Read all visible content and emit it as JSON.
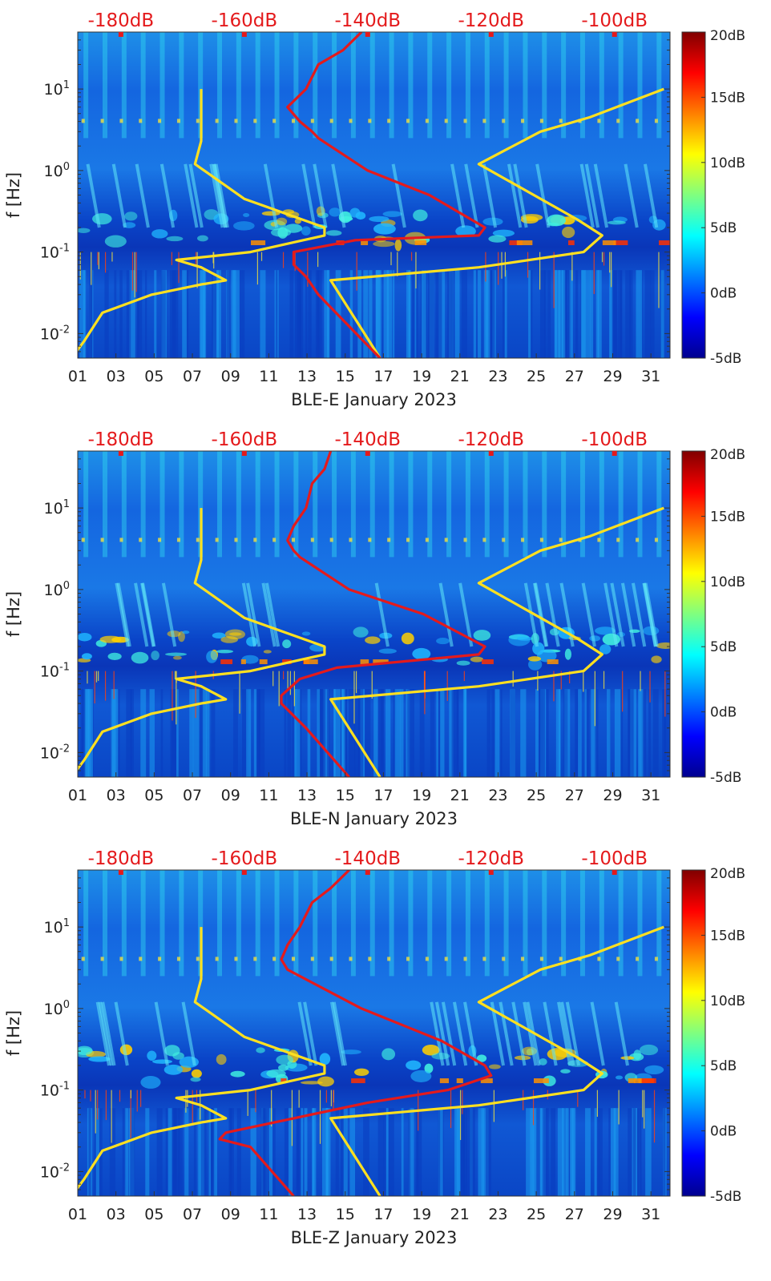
{
  "chart_data": [
    {
      "type": "heatmap",
      "xlabel": "BLE-E January 2023",
      "ylabel": "f [Hz]",
      "x_ticks": [
        "01",
        "03",
        "05",
        "07",
        "09",
        "11",
        "13",
        "15",
        "17",
        "19",
        "21",
        "23",
        "25",
        "27",
        "29",
        "31"
      ],
      "x_range": [
        1,
        32
      ],
      "y_scale": "log",
      "y_range": [
        0.005,
        50
      ],
      "y_ticks": [
        {
          "value": 10,
          "base": "10",
          "exp": "1"
        },
        {
          "value": 1,
          "base": "10",
          "exp": "0"
        },
        {
          "value": 0.1,
          "base": "10",
          "exp": "-1"
        },
        {
          "value": 0.01,
          "base": "10",
          "exp": "-2"
        }
      ],
      "top_axis_ticks": [
        "-180dB",
        "-160dB",
        "-140dB",
        "-120dB",
        "-100dB"
      ],
      "top_axis_range_db": [
        -187,
        -91
      ],
      "colorbar": {
        "ticks": [
          "20dB",
          "15dB",
          "10dB",
          "5dB",
          "0dB",
          "-5dB"
        ],
        "range": [
          -5,
          20
        ],
        "colormap": "jet"
      },
      "series": [
        {
          "color": "#ffe020",
          "axis": "top-dB",
          "points": [
            [
              -188,
              0.005
            ],
            [
              -186,
              0.008
            ],
            [
              -183,
              0.018
            ],
            [
              -175,
              0.03
            ],
            [
              -167,
              0.04
            ],
            [
              -163,
              0.045
            ],
            [
              -167,
              0.065
            ],
            [
              -171,
              0.08
            ],
            [
              -159,
              0.1
            ],
            [
              -147,
              0.16
            ],
            [
              -147,
              0.2
            ],
            [
              -160,
              0.45
            ],
            [
              -168,
              1.2
            ],
            [
              -167,
              2.3
            ],
            [
              -167,
              10
            ]
          ]
        },
        {
          "color": "#ffe020",
          "axis": "top-dB",
          "points": [
            [
              -138,
              0.005
            ],
            [
              -146,
              0.045
            ],
            [
              -122,
              0.065
            ],
            [
              -105,
              0.1
            ],
            [
              -102,
              0.16
            ],
            [
              -106,
              0.25
            ],
            [
              -122,
              1.2
            ],
            [
              -112,
              3
            ],
            [
              -104,
              4.5
            ],
            [
              -92,
              10
            ]
          ]
        },
        {
          "color": "#e41a1c",
          "axis": "top-dB",
          "points": [
            [
              -138,
              0.005
            ],
            [
              -148,
              0.03
            ],
            [
              -150,
              0.05
            ],
            [
              -152,
              0.07
            ],
            [
              -152,
              0.1
            ],
            [
              -142,
              0.14
            ],
            [
              -122,
              0.16
            ],
            [
              -121,
              0.2
            ],
            [
              -130,
              0.5
            ],
            [
              -140,
              1.0
            ],
            [
              -148,
              2.5
            ],
            [
              -149,
              3
            ],
            [
              -151,
              4
            ],
            [
              -153,
              6
            ],
            [
              -150,
              10
            ],
            [
              -148,
              20
            ],
            [
              -144,
              30
            ],
            [
              -141,
              50
            ]
          ]
        }
      ]
    },
    {
      "type": "heatmap",
      "xlabel": "BLE-N January 2023",
      "ylabel": "f [Hz]",
      "x_ticks": [
        "01",
        "03",
        "05",
        "07",
        "09",
        "11",
        "13",
        "15",
        "17",
        "19",
        "21",
        "23",
        "25",
        "27",
        "29",
        "31"
      ],
      "x_range": [
        1,
        32
      ],
      "y_scale": "log",
      "y_range": [
        0.005,
        50
      ],
      "y_ticks": [
        {
          "value": 10,
          "base": "10",
          "exp": "1"
        },
        {
          "value": 1,
          "base": "10",
          "exp": "0"
        },
        {
          "value": 0.1,
          "base": "10",
          "exp": "-1"
        },
        {
          "value": 0.01,
          "base": "10",
          "exp": "-2"
        }
      ],
      "top_axis_ticks": [
        "-180dB",
        "-160dB",
        "-140dB",
        "-120dB",
        "-100dB"
      ],
      "top_axis_range_db": [
        -187,
        -91
      ],
      "colorbar": {
        "ticks": [
          "20dB",
          "15dB",
          "10dB",
          "5dB",
          "0dB",
          "-5dB"
        ],
        "range": [
          -5,
          20
        ],
        "colormap": "jet"
      },
      "series": [
        {
          "color": "#ffe020",
          "axis": "top-dB",
          "points": [
            [
              -188,
              0.005
            ],
            [
              -186,
              0.008
            ],
            [
              -183,
              0.018
            ],
            [
              -175,
              0.03
            ],
            [
              -167,
              0.04
            ],
            [
              -163,
              0.045
            ],
            [
              -167,
              0.065
            ],
            [
              -171,
              0.08
            ],
            [
              -159,
              0.1
            ],
            [
              -147,
              0.16
            ],
            [
              -147,
              0.2
            ],
            [
              -160,
              0.45
            ],
            [
              -168,
              1.2
            ],
            [
              -167,
              2.3
            ],
            [
              -167,
              10
            ]
          ]
        },
        {
          "color": "#ffe020",
          "axis": "top-dB",
          "points": [
            [
              -138,
              0.005
            ],
            [
              -146,
              0.045
            ],
            [
              -122,
              0.065
            ],
            [
              -105,
              0.1
            ],
            [
              -102,
              0.16
            ],
            [
              -106,
              0.25
            ],
            [
              -122,
              1.2
            ],
            [
              -112,
              3
            ],
            [
              -104,
              4.5
            ],
            [
              -92,
              10
            ]
          ]
        },
        {
          "color": "#e41a1c",
          "axis": "top-dB",
          "points": [
            [
              -143,
              0.005
            ],
            [
              -150,
              0.02
            ],
            [
              -154,
              0.04
            ],
            [
              -154,
              0.05
            ],
            [
              -151,
              0.08
            ],
            [
              -145,
              0.11
            ],
            [
              -122,
              0.16
            ],
            [
              -121,
              0.2
            ],
            [
              -131,
              0.5
            ],
            [
              -143,
              1.0
            ],
            [
              -151,
              2.5
            ],
            [
              -152,
              3
            ],
            [
              -153,
              4
            ],
            [
              -152,
              6
            ],
            [
              -150,
              10
            ],
            [
              -149,
              20
            ],
            [
              -147,
              30
            ],
            [
              -146,
              50
            ]
          ]
        }
      ]
    },
    {
      "type": "heatmap",
      "xlabel": "BLE-Z January 2023",
      "ylabel": "f [Hz]",
      "x_ticks": [
        "01",
        "03",
        "05",
        "07",
        "09",
        "11",
        "13",
        "15",
        "17",
        "19",
        "21",
        "23",
        "25",
        "27",
        "29",
        "31"
      ],
      "x_range": [
        1,
        32
      ],
      "y_scale": "log",
      "y_range": [
        0.005,
        50
      ],
      "y_ticks": [
        {
          "value": 10,
          "base": "10",
          "exp": "1"
        },
        {
          "value": 1,
          "base": "10",
          "exp": "0"
        },
        {
          "value": 0.1,
          "base": "10",
          "exp": "-1"
        },
        {
          "value": 0.01,
          "base": "10",
          "exp": "-2"
        }
      ],
      "top_axis_ticks": [
        "-180dB",
        "-160dB",
        "-140dB",
        "-120dB",
        "-100dB"
      ],
      "top_axis_range_db": [
        -187,
        -91
      ],
      "colorbar": {
        "ticks": [
          "20dB",
          "15dB",
          "10dB",
          "5dB",
          "0dB",
          "-5dB"
        ],
        "range": [
          -5,
          20
        ],
        "colormap": "jet"
      },
      "series": [
        {
          "color": "#ffe020",
          "axis": "top-dB",
          "points": [
            [
              -188,
              0.005
            ],
            [
              -186,
              0.008
            ],
            [
              -183,
              0.018
            ],
            [
              -175,
              0.03
            ],
            [
              -167,
              0.04
            ],
            [
              -163,
              0.045
            ],
            [
              -167,
              0.065
            ],
            [
              -171,
              0.08
            ],
            [
              -159,
              0.1
            ],
            [
              -147,
              0.16
            ],
            [
              -147,
              0.2
            ],
            [
              -160,
              0.45
            ],
            [
              -168,
              1.2
            ],
            [
              -167,
              2.3
            ],
            [
              -167,
              10
            ]
          ]
        },
        {
          "color": "#ffe020",
          "axis": "top-dB",
          "points": [
            [
              -138,
              0.005
            ],
            [
              -146,
              0.045
            ],
            [
              -122,
              0.065
            ],
            [
              -105,
              0.1
            ],
            [
              -102,
              0.16
            ],
            [
              -106,
              0.25
            ],
            [
              -122,
              1.2
            ],
            [
              -112,
              3
            ],
            [
              -104,
              4.5
            ],
            [
              -92,
              10
            ]
          ]
        },
        {
          "color": "#e41a1c",
          "axis": "top-dB",
          "points": [
            [
              -152,
              0.005
            ],
            [
              -159,
              0.02
            ],
            [
              -164,
              0.025
            ],
            [
              -163,
              0.03
            ],
            [
              -152,
              0.045
            ],
            [
              -140,
              0.07
            ],
            [
              -127,
              0.1
            ],
            [
              -120,
              0.15
            ],
            [
              -121,
              0.2
            ],
            [
              -128,
              0.4
            ],
            [
              -141,
              1.0
            ],
            [
              -151,
              2.5
            ],
            [
              -153,
              3
            ],
            [
              -154,
              4
            ],
            [
              -153,
              6
            ],
            [
              -151,
              10
            ],
            [
              -149,
              20
            ],
            [
              -146,
              30
            ],
            [
              -143,
              50
            ]
          ]
        }
      ]
    }
  ]
}
